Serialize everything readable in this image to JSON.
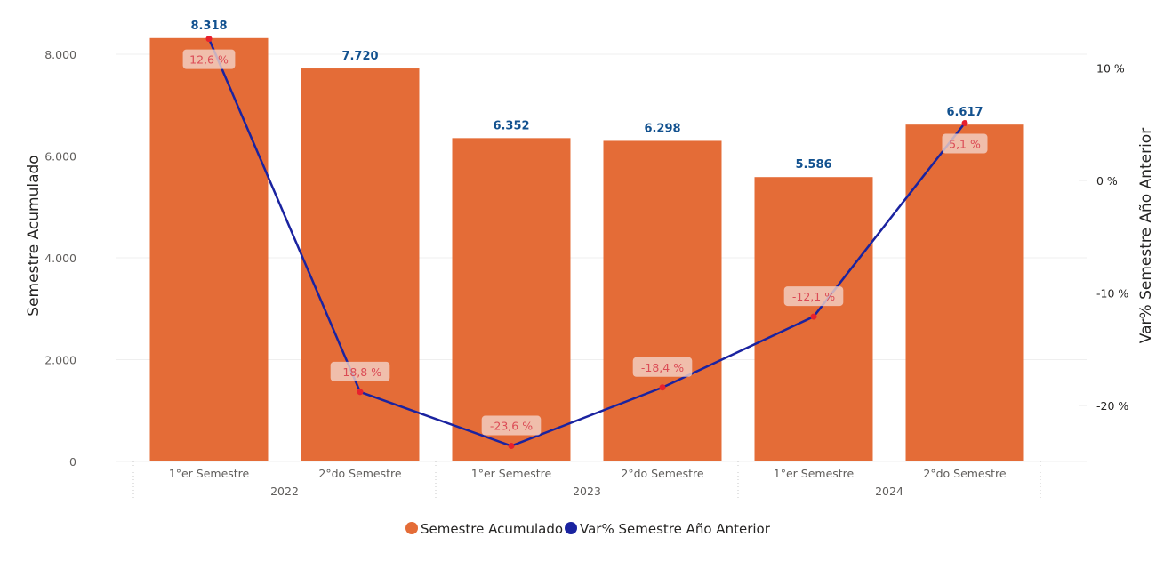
{
  "chart_data": {
    "type": "bar+line",
    "categories": [
      "1°er Semestre",
      "2°do Semestre",
      "1°er Semestre",
      "2°do Semestre",
      "1°er Semestre",
      "2°do Semestre"
    ],
    "groups": [
      {
        "label": "2022",
        "count": 2
      },
      {
        "label": "2023",
        "count": 2
      },
      {
        "label": "2024",
        "count": 2
      }
    ],
    "series": [
      {
        "name": "Semestre Acumulado",
        "type": "bar",
        "axis": "left",
        "color": "#E46C37",
        "values": [
          8318,
          7720,
          6352,
          6298,
          5586,
          6617
        ],
        "labels": [
          "8.318",
          "7.720",
          "6.352",
          "6.298",
          "5.586",
          "6.617"
        ]
      },
      {
        "name": "Var% Semestre Año Anterior",
        "type": "line",
        "axis": "right",
        "color": "#1A23A0",
        "marker_color": "#E8202E",
        "values": [
          12.6,
          -18.8,
          -23.6,
          -18.4,
          -12.1,
          5.1
        ],
        "labels": [
          "12,6 %",
          "-18,8 %",
          "-23,6 %",
          "-18,4 %",
          "-12,1 %",
          "5,1 %"
        ]
      }
    ],
    "ylabel": "Semestre Acumulado",
    "ylim": [
      0,
      8000
    ],
    "yticks": [
      0,
      2000,
      4000,
      6000,
      8000
    ],
    "ytick_labels": [
      "0",
      "2.000",
      "4.000",
      "6.000",
      "8.000"
    ],
    "y2label": "Var% Semestre Año Anterior",
    "y2ticks": [
      10,
      0,
      -10,
      -20
    ],
    "y2tick_labels": [
      "10 %",
      "0 %",
      "-10 %",
      "-20 %"
    ],
    "grid": true,
    "legend_position": "bottom-center"
  }
}
